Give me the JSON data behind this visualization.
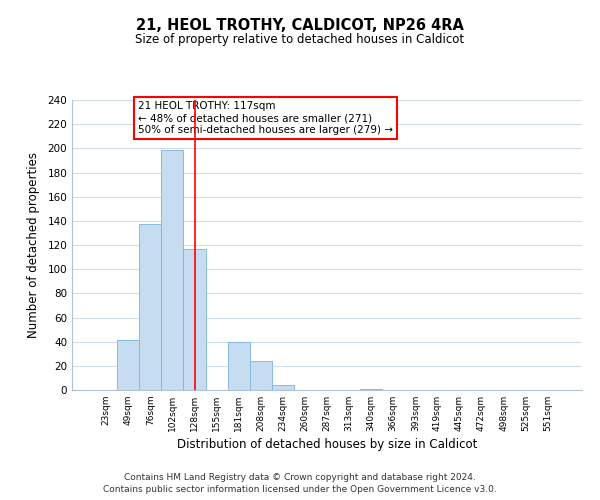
{
  "title": "21, HEOL TROTHY, CALDICOT, NP26 4RA",
  "subtitle": "Size of property relative to detached houses in Caldicot",
  "xlabel": "Distribution of detached houses by size in Caldicot",
  "ylabel": "Number of detached properties",
  "bar_color": "#c6dcf0",
  "bar_edge_color": "#7ab4d8",
  "categories": [
    "23sqm",
    "49sqm",
    "76sqm",
    "102sqm",
    "128sqm",
    "155sqm",
    "181sqm",
    "208sqm",
    "234sqm",
    "260sqm",
    "287sqm",
    "313sqm",
    "340sqm",
    "366sqm",
    "393sqm",
    "419sqm",
    "445sqm",
    "472sqm",
    "498sqm",
    "525sqm",
    "551sqm"
  ],
  "values": [
    0,
    41,
    137,
    199,
    117,
    0,
    40,
    24,
    4,
    0,
    0,
    0,
    1,
    0,
    0,
    0,
    0,
    0,
    0,
    0,
    0
  ],
  "ylim": [
    0,
    240
  ],
  "yticks": [
    0,
    20,
    40,
    60,
    80,
    100,
    120,
    140,
    160,
    180,
    200,
    220,
    240
  ],
  "annotation_title": "21 HEOL TROTHY: 117sqm",
  "annotation_line1": "← 48% of detached houses are smaller (271)",
  "annotation_line2": "50% of semi-detached houses are larger (279) →",
  "property_bar_index": 4,
  "red_line_bar_index": 4,
  "footer1": "Contains HM Land Registry data © Crown copyright and database right 2024.",
  "footer2": "Contains public sector information licensed under the Open Government Licence v3.0.",
  "background_color": "#ffffff",
  "grid_color": "#d0dce8"
}
